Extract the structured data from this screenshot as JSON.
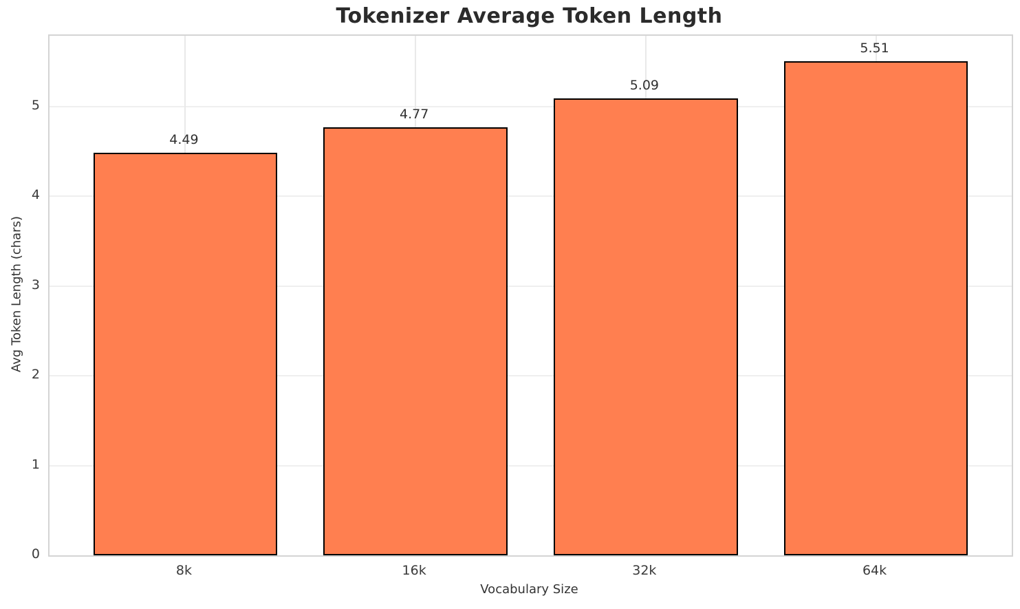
{
  "chart_data": {
    "type": "bar",
    "title": "Tokenizer Average Token Length",
    "xlabel": "Vocabulary Size",
    "ylabel": "Avg Token Length (chars)",
    "categories": [
      "8k",
      "16k",
      "32k",
      "64k"
    ],
    "values": [
      4.49,
      4.77,
      5.09,
      5.51
    ],
    "value_labels": [
      "4.49",
      "4.77",
      "5.09",
      "5.51"
    ],
    "yticks": [
      0,
      1,
      2,
      3,
      4,
      5
    ],
    "ylim": [
      0,
      5.79
    ],
    "grid": true,
    "legend": "none",
    "colors": {
      "bar_fill": "#FF7F50",
      "bar_edge": "#000000",
      "grid_h": "#efefef",
      "grid_v": "#e9e9e9",
      "spine": "#d4d4d4",
      "title_text": "#2b2b2b",
      "tick_text": "#3a3a3a"
    }
  }
}
